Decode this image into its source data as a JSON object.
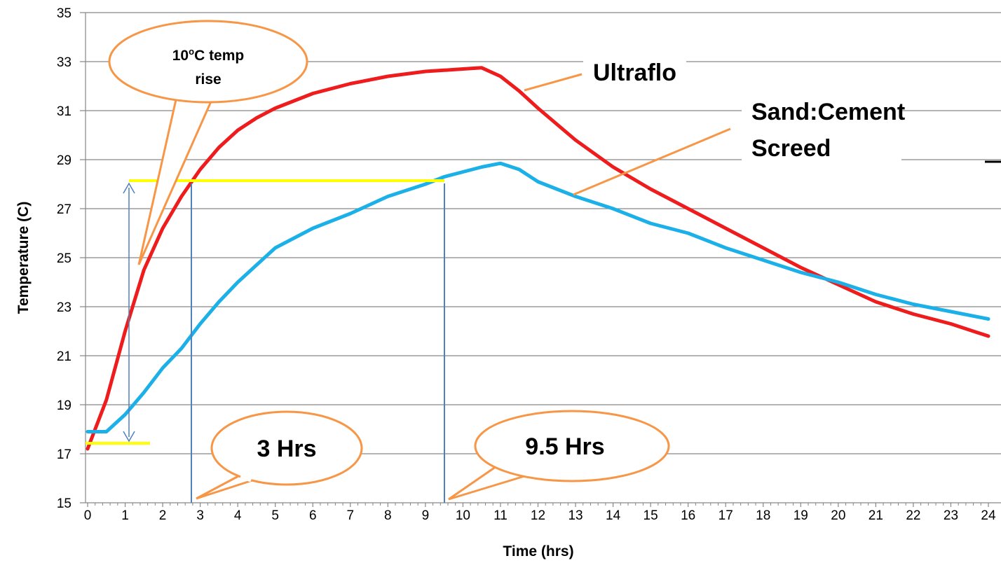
{
  "chart_data": {
    "type": "line",
    "xlabel": "Time (hrs)",
    "ylabel": "Temperature (C)",
    "x": [
      0,
      0.5,
      1,
      1.5,
      2,
      2.5,
      3,
      3.5,
      4,
      4.5,
      5,
      6,
      7,
      8,
      9,
      9.5,
      10,
      10.5,
      11,
      11.5,
      12,
      13,
      14,
      15,
      16,
      17,
      18,
      19,
      20,
      21,
      22,
      23,
      24
    ],
    "series": [
      {
        "name": "Ultraflo",
        "color": "#ee1c1c",
        "values": [
          17.2,
          19.2,
          22,
          24.5,
          26.2,
          27.5,
          28.6,
          29.5,
          30.2,
          30.7,
          31.1,
          31.7,
          32.1,
          32.4,
          32.6,
          32.65,
          32.7,
          32.75,
          32.4,
          31.8,
          31.1,
          29.8,
          28.7,
          27.8,
          27.0,
          26.2,
          25.4,
          24.6,
          23.9,
          23.2,
          22.7,
          22.3,
          21.8
        ]
      },
      {
        "name": "Sand:Cement Screed",
        "color": "#1cb0e8",
        "values": [
          17.9,
          17.9,
          18.6,
          19.5,
          20.5,
          21.3,
          22.3,
          23.2,
          24.0,
          24.7,
          25.4,
          26.2,
          26.8,
          27.5,
          28.0,
          28.3,
          28.5,
          28.7,
          28.85,
          28.6,
          28.1,
          27.5,
          27.0,
          26.4,
          26.0,
          25.4,
          24.9,
          24.4,
          24.0,
          23.5,
          23.1,
          22.8,
          22.5
        ]
      }
    ],
    "xlim": [
      0,
      24
    ],
    "xticks": [
      0,
      1,
      2,
      3,
      4,
      5,
      6,
      7,
      8,
      9,
      10,
      11,
      12,
      13,
      14,
      15,
      16,
      17,
      18,
      19,
      20,
      21,
      22,
      23,
      24
    ],
    "ylim": [
      15,
      35
    ],
    "yticks": [
      15,
      17,
      19,
      21,
      23,
      25,
      27,
      29,
      31,
      33,
      35
    ],
    "grid": true,
    "annotations": {
      "temp_rise": {
        "number": "10",
        "superscript": "o",
        "rest": "C temp",
        "line2": "rise"
      },
      "hours_3": "3 Hrs",
      "hours_9_5": "9.5 Hrs"
    }
  }
}
